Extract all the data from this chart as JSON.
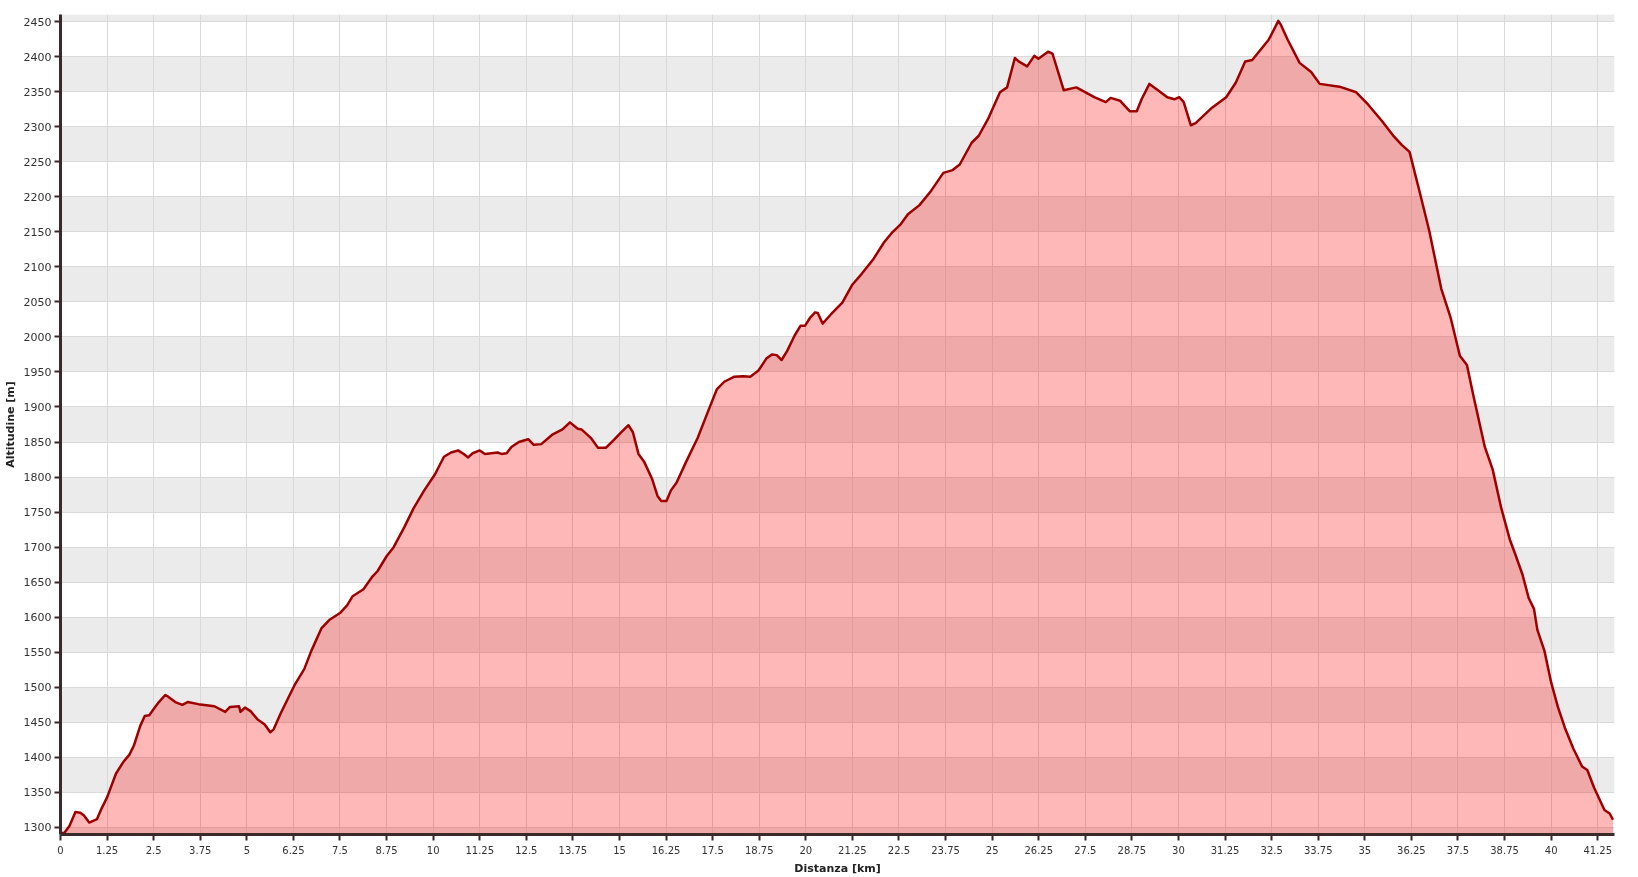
{
  "chart_data": {
    "type": "area",
    "xlabel": "Distanza [km]",
    "ylabel": "Altitudine [m]",
    "xlim": [
      0,
      41.7
    ],
    "ylim": [
      1290,
      2460
    ],
    "xticks": [
      0,
      1.25,
      2.5,
      3.75,
      5,
      6.25,
      7.5,
      8.75,
      10,
      11.25,
      12.5,
      13.75,
      15,
      16.25,
      17.5,
      18.75,
      20,
      21.25,
      22.5,
      23.75,
      25,
      26.25,
      27.5,
      28.75,
      30,
      31.25,
      32.5,
      33.75,
      35,
      36.25,
      37.5,
      38.75,
      40,
      41.25
    ],
    "yticks": [
      1300,
      1350,
      1400,
      1450,
      1500,
      1550,
      1600,
      1650,
      1700,
      1750,
      1800,
      1850,
      1900,
      1950,
      2000,
      2050,
      2100,
      2150,
      2200,
      2250,
      2300,
      2350,
      2400,
      2450
    ],
    "grid": true,
    "bands": [
      {
        "axis": "y",
        "from": 1290,
        "to": 1300,
        "color": "#ebebeb"
      },
      {
        "axis": "y",
        "from": 1350,
        "to": 1400,
        "color": "#ebebeb"
      },
      {
        "axis": "y",
        "from": 1450,
        "to": 1500,
        "color": "#ebebeb"
      },
      {
        "axis": "y",
        "from": 1550,
        "to": 1600,
        "color": "#ebebeb"
      },
      {
        "axis": "y",
        "from": 1650,
        "to": 1700,
        "color": "#ebebeb"
      },
      {
        "axis": "y",
        "from": 1750,
        "to": 1800,
        "color": "#ebebeb"
      },
      {
        "axis": "y",
        "from": 1850,
        "to": 1900,
        "color": "#ebebeb"
      },
      {
        "axis": "y",
        "from": 1950,
        "to": 2000,
        "color": "#ebebeb"
      },
      {
        "axis": "y",
        "from": 2050,
        "to": 2100,
        "color": "#ebebeb"
      },
      {
        "axis": "y",
        "from": 2150,
        "to": 2200,
        "color": "#ebebeb"
      },
      {
        "axis": "y",
        "from": 2250,
        "to": 2300,
        "color": "#ebebeb"
      },
      {
        "axis": "y",
        "from": 2350,
        "to": 2400,
        "color": "#ebebeb"
      },
      {
        "axis": "y",
        "from": 2450,
        "to": 2460,
        "color": "#ebebeb"
      }
    ],
    "x": [
      0,
      0.1,
      0.24,
      0.4,
      0.53,
      0.63,
      0.77,
      0.98,
      1.11,
      1.25,
      1.49,
      1.68,
      1.85,
      1.97,
      2.14,
      2.26,
      2.38,
      2.5,
      2.64,
      2.81,
      2.88,
      3.08,
      3.27,
      3.41,
      3.7,
      4.13,
      4.42,
      4.55,
      4.79,
      4.83,
      4.95,
      5.1,
      5.29,
      5.48,
      5.63,
      5.72,
      5.91,
      6.15,
      6.3,
      6.54,
      6.73,
      7.0,
      7.21,
      7.5,
      7.69,
      7.84,
      8.13,
      8.37,
      8.51,
      8.75,
      8.94,
      9.23,
      9.47,
      9.76,
      10.05,
      10.29,
      10.48,
      10.67,
      10.82,
      10.94,
      11.06,
      11.25,
      11.39,
      11.73,
      11.83,
      11.97,
      12.1,
      12.3,
      12.55,
      12.7,
      12.9,
      13.21,
      13.47,
      13.67,
      13.88,
      13.98,
      14.23,
      14.42,
      14.64,
      14.85,
      15.05,
      15.24,
      15.36,
      15.51,
      15.66,
      15.87,
      16.02,
      16.12,
      16.26,
      16.38,
      16.53,
      16.79,
      17.1,
      17.4,
      17.61,
      17.81,
      18.07,
      18.32,
      18.51,
      18.73,
      18.94,
      19.09,
      19.22,
      19.35,
      19.5,
      19.7,
      19.86,
      19.98,
      20.11,
      20.25,
      20.32,
      20.45,
      20.67,
      20.98,
      21.24,
      21.5,
      21.8,
      22.1,
      22.3,
      22.55,
      22.74,
      23.05,
      23.37,
      23.69,
      23.94,
      24.13,
      24.45,
      24.64,
      24.89,
      25.21,
      25.4,
      25.61,
      25.71,
      25.94,
      26.13,
      26.24,
      26.5,
      26.62,
      26.92,
      27.26,
      27.74,
      28.05,
      28.18,
      28.43,
      28.69,
      28.88,
      29.01,
      29.22,
      29.45,
      29.7,
      29.89,
      30.02,
      30.14,
      30.33,
      30.46,
      30.9,
      31.28,
      31.54,
      31.79,
      31.98,
      32.42,
      32.68,
      32.74,
      32.93,
      33.25,
      33.56,
      33.79,
      34.32,
      34.77,
      35.08,
      35.46,
      35.78,
      35.99,
      36.2,
      36.48,
      36.73,
      37.05,
      37.3,
      37.55,
      37.74,
      37.93,
      38.22,
      38.43,
      38.66,
      38.89,
      39.03,
      39.23,
      39.4,
      39.54,
      39.63,
      39.82,
      40.0,
      40.18,
      40.37,
      40.6,
      40.83,
      40.97,
      41.15,
      41.43,
      41.57,
      41.66
    ],
    "series": [
      {
        "color": "#9e0000",
        "values": [
          1292,
          1292,
          1302,
          1322,
          1321,
          1317,
          1307,
          1312,
          1328,
          1343,
          1377,
          1393,
          1404,
          1417,
          1445,
          1459,
          1460,
          1469,
          1479,
          1489,
          1487,
          1479,
          1475,
          1479,
          1476,
          1473,
          1465,
          1472,
          1473,
          1465,
          1471,
          1466,
          1454,
          1447,
          1436,
          1440,
          1463,
          1489,
          1505,
          1526,
          1552,
          1584,
          1596,
          1606,
          1617,
          1630,
          1640,
          1658,
          1666,
          1687,
          1700,
          1729,
          1755,
          1781,
          1804,
          1829,
          1835,
          1838,
          1833,
          1828,
          1834,
          1838,
          1833,
          1835,
          1833,
          1834,
          1843,
          1850,
          1854,
          1846,
          1847,
          1861,
          1868,
          1878,
          1869,
          1868,
          1856,
          1842,
          1842,
          1853,
          1864,
          1874,
          1864,
          1833,
          1822,
          1798,
          1773,
          1766,
          1766,
          1781,
          1792,
          1822,
          1856,
          1897,
          1925,
          1936,
          1943,
          1944,
          1943,
          1952,
          1969,
          1975,
          1974,
          1967,
          1980,
          2002,
          2016,
          2016,
          2027,
          2035,
          2034,
          2019,
          2032,
          2049,
          2074,
          2090,
          2110,
          2135,
          2148,
          2161,
          2175,
          2188,
          2209,
          2234,
          2238,
          2246,
          2277,
          2287,
          2311,
          2349,
          2356,
          2398,
          2393,
          2386,
          2401,
          2397,
          2407,
          2404,
          2352,
          2356,
          2342,
          2335,
          2341,
          2337,
          2322,
          2322,
          2339,
          2361,
          2352,
          2342,
          2339,
          2342,
          2335,
          2302,
          2305,
          2327,
          2342,
          2363,
          2393,
          2395,
          2424,
          2451,
          2446,
          2424,
          2391,
          2378,
          2361,
          2357,
          2349,
          2332,
          2308,
          2286,
          2274,
          2264,
          2205,
          2151,
          2069,
          2028,
          1973,
          1960,
          1912,
          1843,
          1811,
          1756,
          1711,
          1691,
          1661,
          1627,
          1612,
          1582,
          1552,
          1507,
          1472,
          1442,
          1412,
          1387,
          1382,
          1357,
          1325,
          1320,
          1311
        ]
      }
    ]
  }
}
